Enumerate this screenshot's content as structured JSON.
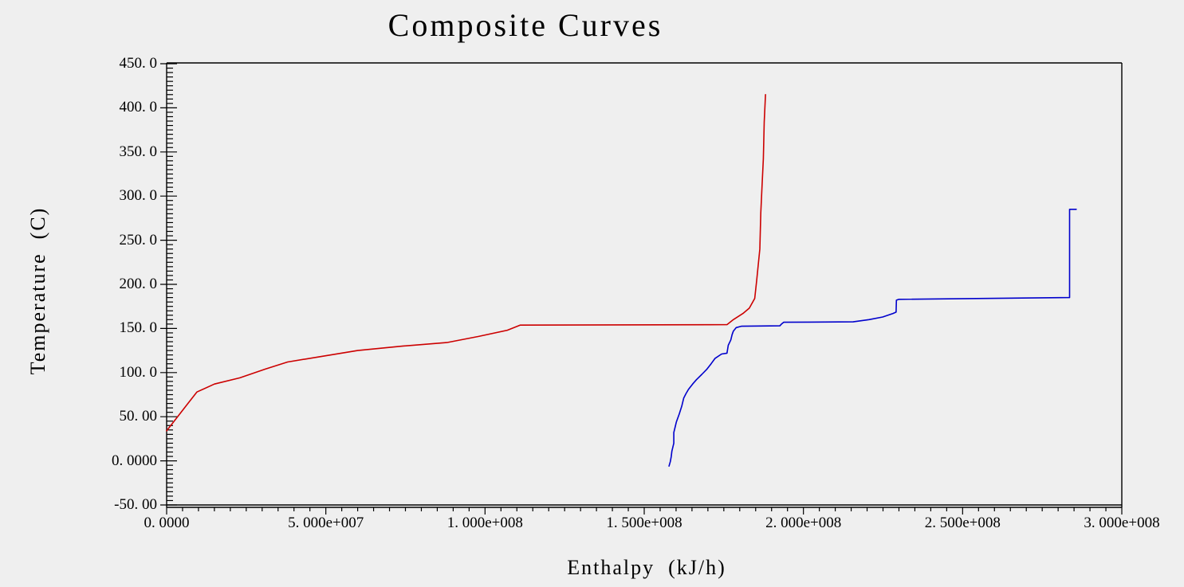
{
  "title": "Composite Curves",
  "axes": {
    "x_label": "Enthalpy  (kJ/h)",
    "y_label": "Temperature  (C)",
    "x_range": [
      0,
      300000000.0
    ],
    "y_range": [
      -50,
      450
    ],
    "x_minor_step": 5000000.0,
    "y_minor_step": 5,
    "x_ticks": [
      {
        "value": 0,
        "label": "0. 0000"
      },
      {
        "value": 50000000.0,
        "label": "5. 000e+007"
      },
      {
        "value": 100000000.0,
        "label": "1. 000e+008"
      },
      {
        "value": 150000000.0,
        "label": "1. 500e+008"
      },
      {
        "value": 200000000.0,
        "label": "2. 000e+008"
      },
      {
        "value": 250000000.0,
        "label": "2. 500e+008"
      },
      {
        "value": 300000000.0,
        "label": "3. 000e+008"
      }
    ],
    "y_ticks": [
      {
        "value": 450,
        "label": "450. 0"
      },
      {
        "value": 400,
        "label": "400. 0"
      },
      {
        "value": 350,
        "label": "350. 0"
      },
      {
        "value": 300,
        "label": "300. 0"
      },
      {
        "value": 250,
        "label": "250. 0"
      },
      {
        "value": 200,
        "label": "200. 0"
      },
      {
        "value": 150,
        "label": "150. 0"
      },
      {
        "value": 100,
        "label": "100. 0"
      },
      {
        "value": 50,
        "label": "50. 00"
      },
      {
        "value": 0,
        "label": "0. 0000"
      },
      {
        "value": -50,
        "label": "-50. 00"
      }
    ]
  },
  "colors": {
    "background": "#efefef",
    "axis": "#000000",
    "red_curve": "#cc0000",
    "blue_curve": "#0000cc"
  },
  "chart_data": {
    "type": "line",
    "title": "Composite Curves",
    "xlabel": "Enthalpy (kJ/h)",
    "ylabel": "Temperature (C)",
    "xlim": [
      0,
      300000000.0
    ],
    "ylim": [
      -50,
      450
    ],
    "grid": false,
    "legend": "none",
    "series": [
      {
        "name": "red-curve",
        "color": "#cc0000",
        "points": [
          [
            0,
            34
          ],
          [
            4500000.0,
            55
          ],
          [
            9500000.0,
            78
          ],
          [
            15000000.0,
            87
          ],
          [
            23000000.0,
            94
          ],
          [
            31000000.0,
            104
          ],
          [
            38000000.0,
            112
          ],
          [
            48000000.0,
            118
          ],
          [
            60000000.0,
            125
          ],
          [
            74000000.0,
            130
          ],
          [
            88000000.0,
            134
          ],
          [
            98000000.0,
            141
          ],
          [
            107000000.0,
            148
          ],
          [
            111000000.0,
            153.8
          ],
          [
            176000000.0,
            154.3
          ],
          [
            178000000.0,
            160
          ],
          [
            181000000.0,
            167
          ],
          [
            183000000.0,
            173
          ],
          [
            184700000.0,
            184
          ],
          [
            185300000.0,
            204
          ],
          [
            185800000.0,
            222
          ],
          [
            186300000.0,
            240
          ],
          [
            186600000.0,
            281
          ],
          [
            187000000.0,
            312
          ],
          [
            187400000.0,
            342
          ],
          [
            187700000.0,
            384
          ],
          [
            188100000.0,
            415
          ]
        ]
      },
      {
        "name": "blue-curve",
        "color": "#0000cc",
        "points": [
          [
            157800000.0,
            -6
          ],
          [
            158200000.0,
            -1
          ],
          [
            158500000.0,
            5
          ],
          [
            158700000.0,
            11
          ],
          [
            159300000.0,
            20
          ],
          [
            159300000.0,
            32
          ],
          [
            159700000.0,
            38
          ],
          [
            160100000.0,
            44
          ],
          [
            161000000.0,
            53
          ],
          [
            161800000.0,
            62
          ],
          [
            162400000.0,
            71
          ],
          [
            163100000.0,
            76
          ],
          [
            163900000.0,
            81
          ],
          [
            165200000.0,
            87
          ],
          [
            166400000.0,
            92
          ],
          [
            168100000.0,
            98
          ],
          [
            169700000.0,
            104
          ],
          [
            171000000.0,
            110
          ],
          [
            172200000.0,
            116
          ],
          [
            174300000.0,
            121
          ],
          [
            176000000.0,
            122
          ],
          [
            176400000.0,
            131
          ],
          [
            177200000.0,
            137
          ],
          [
            177600000.0,
            143
          ],
          [
            178000000.0,
            147
          ],
          [
            178900000.0,
            151
          ],
          [
            180500000.0,
            152.5
          ],
          [
            192600000.0,
            153
          ],
          [
            193100000.0,
            155
          ],
          [
            193800000.0,
            157
          ],
          [
            215600000.0,
            157.5
          ],
          [
            220600000.0,
            160
          ],
          [
            224900000.0,
            163
          ],
          [
            228100000.0,
            167
          ],
          [
            229100000.0,
            168.5
          ],
          [
            229200000.0,
            182
          ],
          [
            230000000.0,
            183
          ],
          [
            283600000.0,
            185
          ],
          [
            283600000.0,
            285
          ],
          [
            285700000.0,
            285
          ]
        ]
      }
    ]
  }
}
